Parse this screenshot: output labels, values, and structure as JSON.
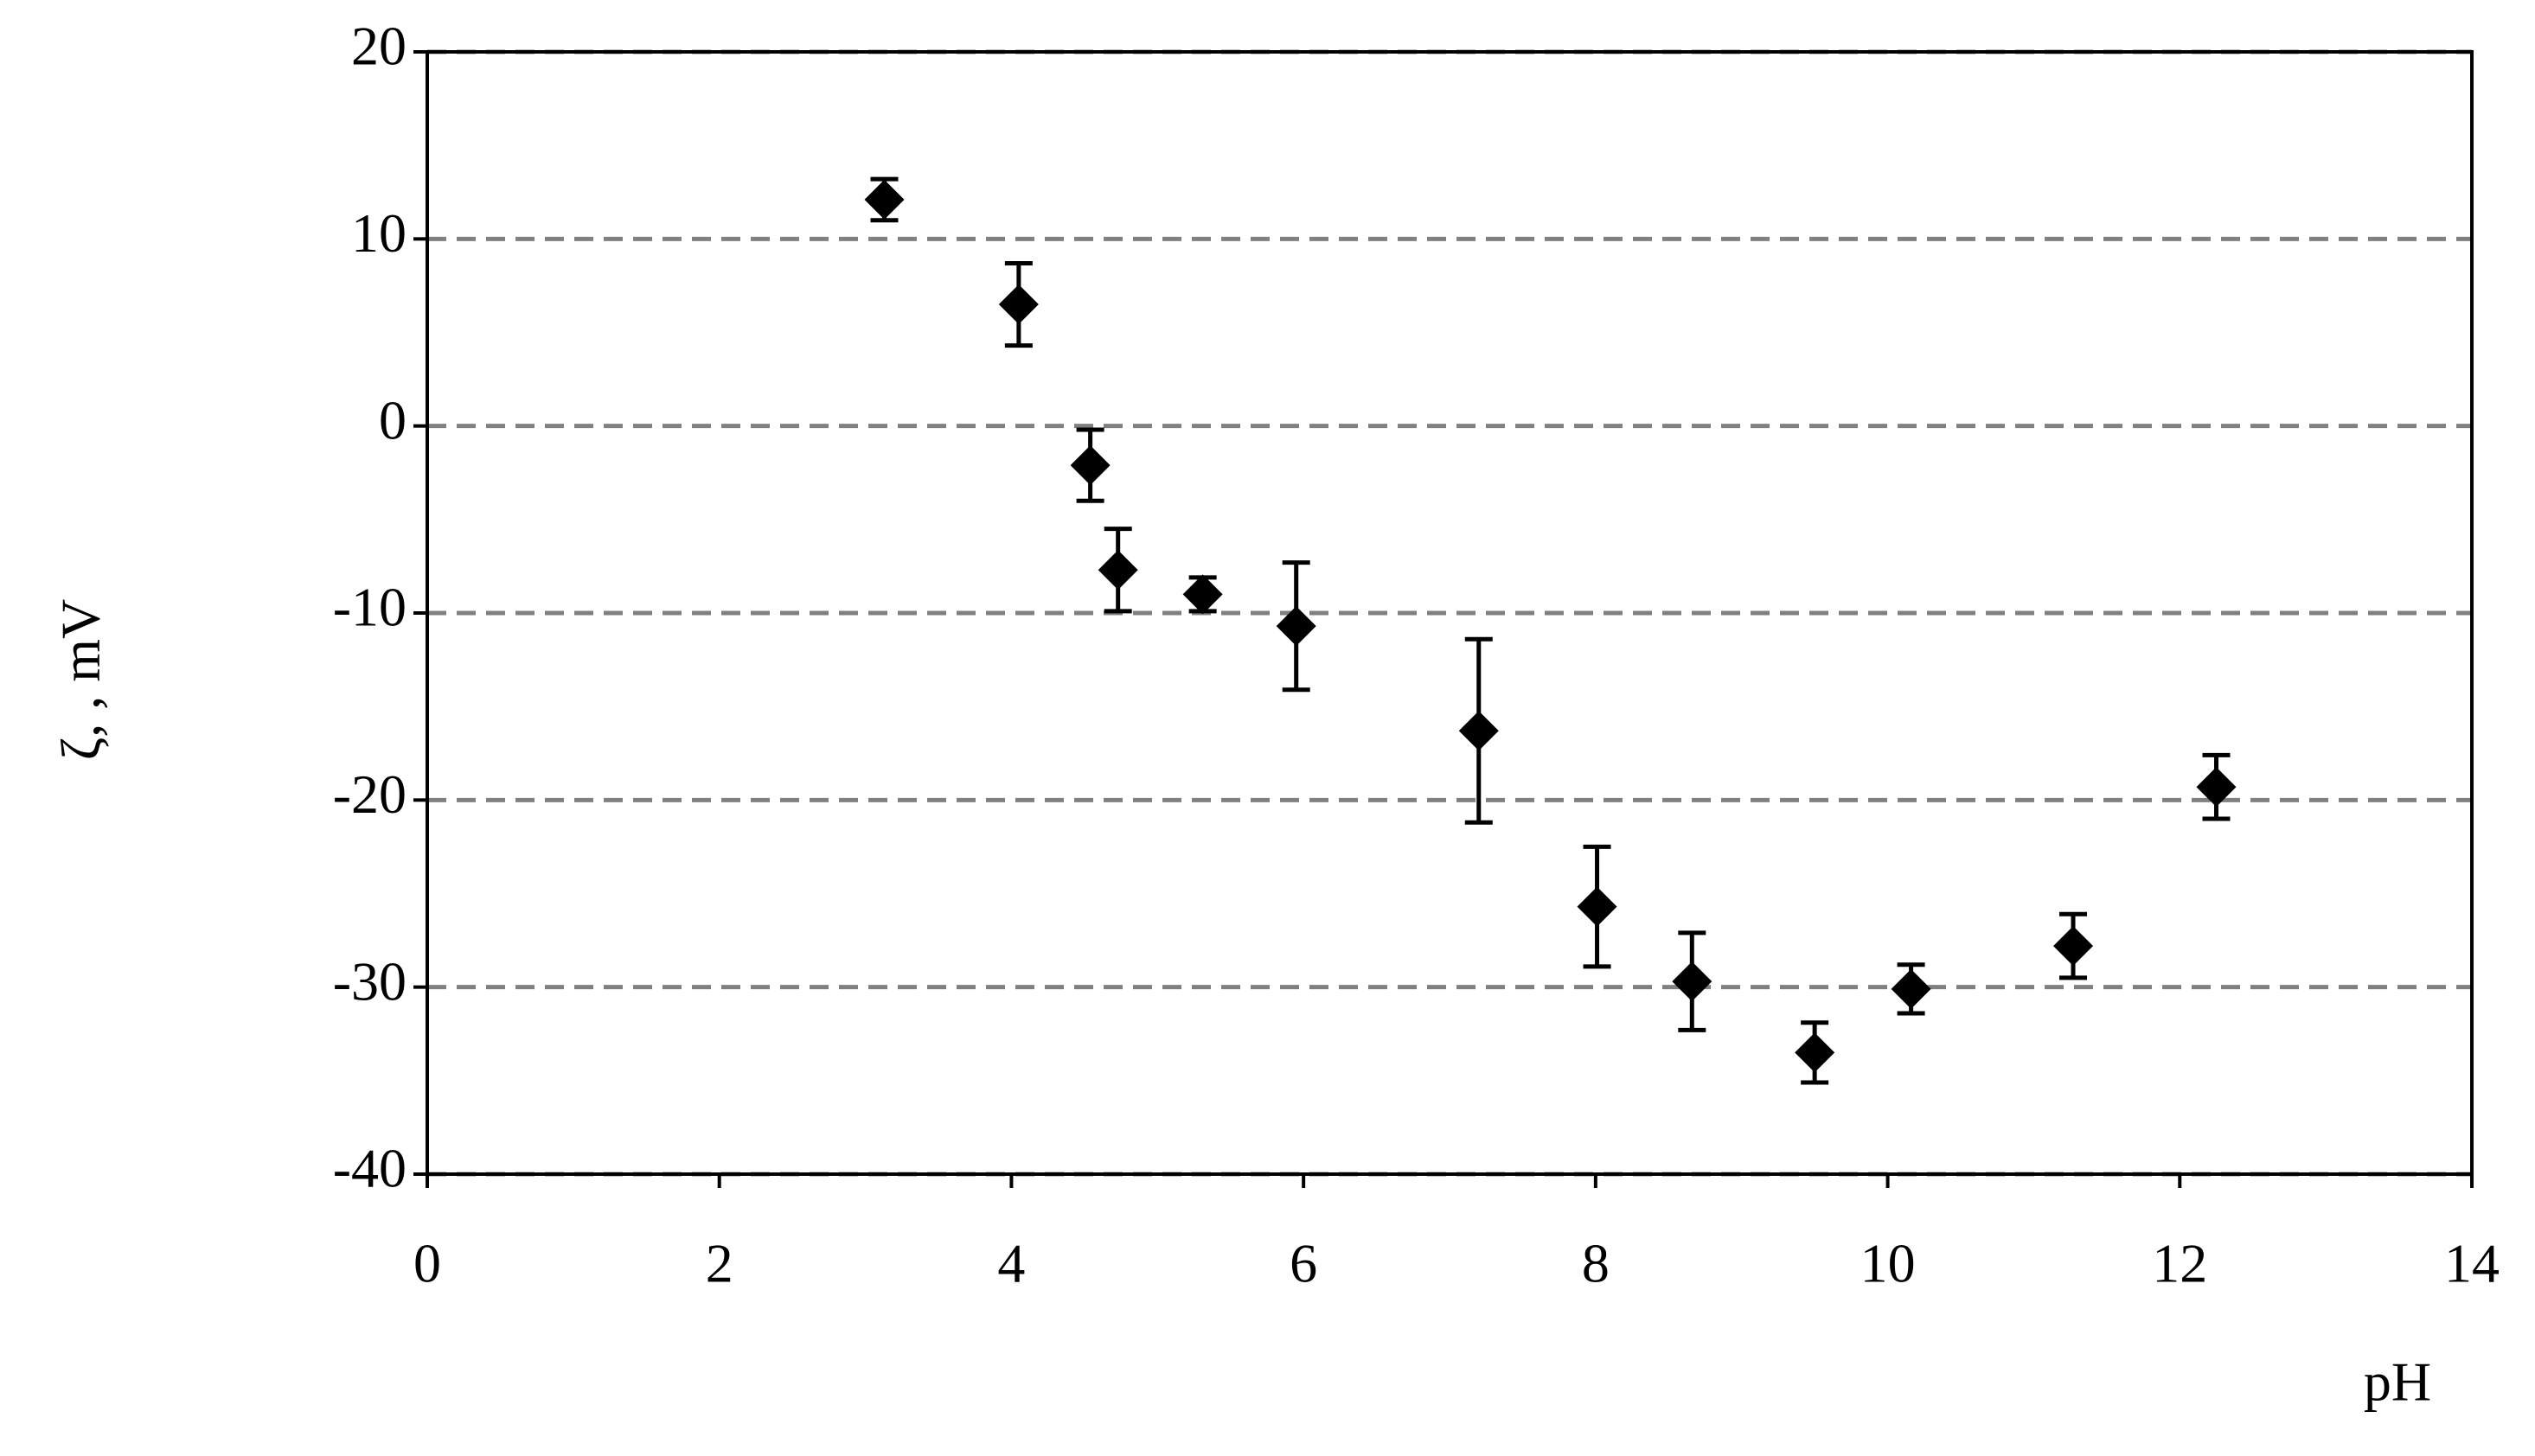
{
  "chart_data": {
    "type": "scatter",
    "x_label": "pH",
    "y_label": "ζ, , mV",
    "x": [
      3.13,
      4.05,
      4.54,
      4.73,
      5.31,
      5.95,
      7.2,
      8.01,
      8.66,
      9.5,
      10.16,
      11.27,
      12.25
    ],
    "values": [
      12.1,
      6.5,
      -2.1,
      -7.7,
      -9.0,
      -10.7,
      -16.3,
      -25.7,
      -29.7,
      -33.5,
      -30.1,
      -27.8,
      -19.3
    ],
    "errors": [
      1.1,
      2.2,
      1.9,
      2.2,
      0.9,
      3.4,
      4.9,
      3.2,
      2.6,
      1.6,
      1.3,
      1.7,
      1.7
    ],
    "color": "#000000",
    "grid_color": "#808080",
    "xlim": [
      0,
      14
    ],
    "xticks": [
      0,
      2,
      4,
      6,
      8,
      10,
      12,
      14
    ],
    "ylim": [
      -40,
      20
    ],
    "yticks": [
      -40,
      -30,
      -20,
      -10,
      0,
      10,
      20
    ],
    "grid": true
  }
}
